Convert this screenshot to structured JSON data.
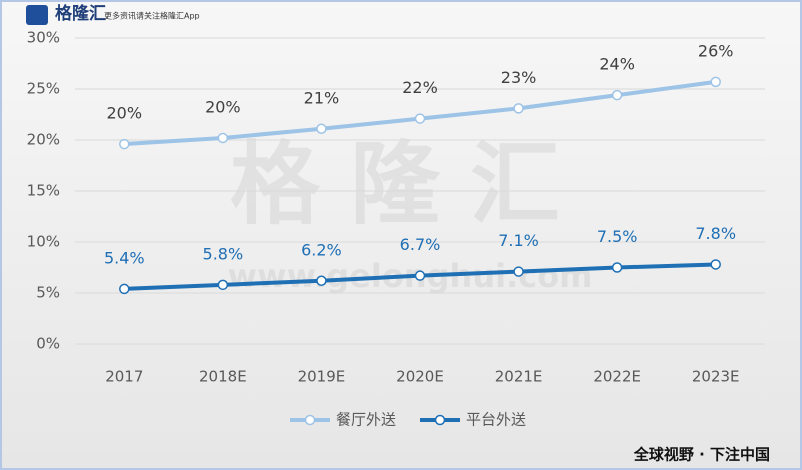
{
  "logo": {
    "name": "格隆汇",
    "tagline": "更多资讯请关注格隆汇App"
  },
  "watermark": {
    "text": "格隆汇",
    "url": "www.gelonghui.com"
  },
  "footer": "全球视野 · 下注中国",
  "chart_data": {
    "type": "line",
    "categories": [
      "2017",
      "2018E",
      "2019E",
      "2020E",
      "2021E",
      "2022E",
      "2023E"
    ],
    "series": [
      {
        "name": "餐厅外送",
        "color": "#9dc3e6",
        "label_color": "#404040",
        "values": [
          19.6,
          20.2,
          21.1,
          22.1,
          23.1,
          24.4,
          25.7
        ],
        "value_labels": [
          "20%",
          "20%",
          "21%",
          "22%",
          "23%",
          "24%",
          "26%"
        ]
      },
      {
        "name": "平台外送",
        "color": "#1f6fb5",
        "label_color": "#1f6fb5",
        "values": [
          5.4,
          5.8,
          6.2,
          6.7,
          7.1,
          7.5,
          7.8
        ],
        "value_labels": [
          "5.4%",
          "5.8%",
          "6.2%",
          "6.7%",
          "7.1%",
          "7.5%",
          "7.8%"
        ]
      }
    ],
    "ylim": [
      0,
      30
    ],
    "yticks": [
      {
        "value": 0,
        "label": "0%"
      },
      {
        "value": 5,
        "label": "5%"
      },
      {
        "value": 10,
        "label": "10%"
      },
      {
        "value": 15,
        "label": "15%"
      },
      {
        "value": 20,
        "label": "20%"
      },
      {
        "value": 25,
        "label": "25%"
      },
      {
        "value": 30,
        "label": "30%"
      }
    ],
    "grid": true,
    "legend": "bottom"
  }
}
